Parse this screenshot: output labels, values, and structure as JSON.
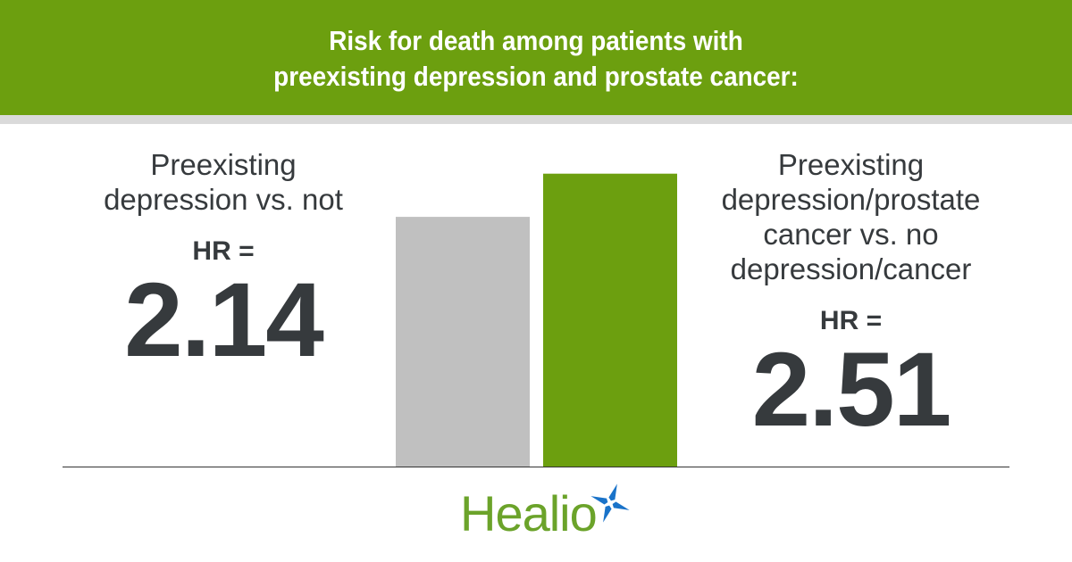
{
  "header": {
    "line1": "Risk for death among patients with",
    "line2": "preexisting depression and prostate cancer:"
  },
  "chart_data": {
    "type": "bar",
    "categories": [
      "Preexisting depression vs. not",
      "Preexisting depression/prostate cancer vs. no depression/cancer"
    ],
    "values": [
      2.14,
      2.51
    ],
    "colors": [
      "#c0c0c0",
      "#6c9f0f"
    ],
    "ylim": [
      0,
      4
    ]
  },
  "left": {
    "label_lines": [
      "Preexisting",
      "depression vs. not"
    ],
    "hr_label": "HR =",
    "value": "2.14"
  },
  "right": {
    "label_lines": [
      "Preexisting",
      "depression/prostate",
      "cancer vs. no",
      "depression/cancer"
    ],
    "hr_label": "HR =",
    "value": "2.51"
  },
  "logo": {
    "text": "Healio",
    "star_color": "#1a73c9"
  }
}
